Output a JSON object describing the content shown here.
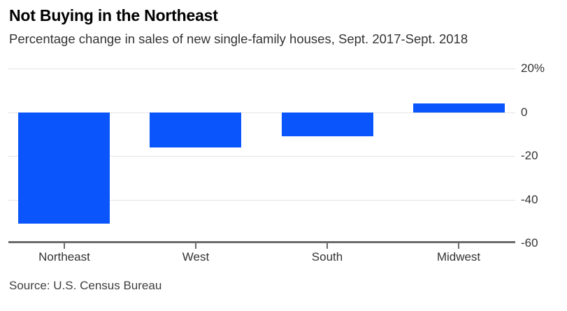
{
  "chart_data": {
    "type": "bar",
    "title": "Not Buying in the Northeast",
    "subtitle": "Percentage change in sales of new single-family houses, Sept. 2017-Sept. 2018",
    "source": "Source: U.S. Census Bureau",
    "categories": [
      "Northeast",
      "West",
      "South",
      "Midwest"
    ],
    "values": [
      -51,
      -16,
      -11,
      4
    ],
    "xlabel": "",
    "ylabel": "",
    "ylim": [
      -60,
      20
    ],
    "yticks": [
      20,
      0,
      -20,
      -40,
      -60
    ],
    "ytick_labels": [
      "20%",
      "0",
      "-20",
      "-40",
      "-60"
    ],
    "grid": true,
    "legend": "none",
    "colors": {
      "bar": "#0a56fc",
      "gridline": "#e4e4e4",
      "axis": "#6b6b6b",
      "title_text": "#000000",
      "subtitle_text": "#333333",
      "tick_text": "#333333",
      "source_text": "#3d3d3d",
      "background": "#ffffff"
    }
  }
}
